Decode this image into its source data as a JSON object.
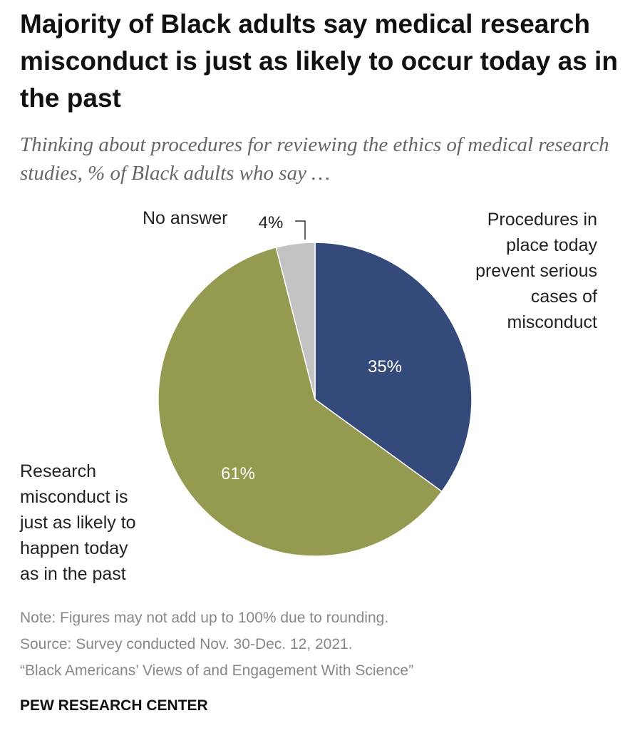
{
  "title": "Majority of Black adults say medical research misconduct is just as likely to occur today as in the past",
  "subtitle": "Thinking about procedures for reviewing the ethics of medical research studies, % of Black adults who say …",
  "chart_data": {
    "type": "pie",
    "title": "Majority of Black adults say medical research misconduct is just as likely to occur today as in the past",
    "slices": [
      {
        "name": "Procedures in place today prevent serious cases of misconduct",
        "value": 35,
        "label": "35%",
        "color": "#344a7a"
      },
      {
        "name": "Research misconduct is just as likely to happen today as in the past",
        "value": 61,
        "label": "61%",
        "color": "#949a4f"
      },
      {
        "name": "No answer",
        "value": 4,
        "label": "4%",
        "color": "#c3c3c3"
      }
    ]
  },
  "labels": {
    "procedures": [
      "Procedures in",
      "place today",
      "prevent serious",
      "cases of",
      "misconduct"
    ],
    "misconduct": [
      "Research",
      "misconduct is",
      "just as likely to",
      "happen today",
      "as in the past"
    ],
    "no_answer": "No answer"
  },
  "footer": {
    "note": "Note: Figures may not add up to 100% due to rounding.",
    "source": "Source: Survey conducted Nov. 30-Dec. 12, 2021.",
    "report": "“Black Americans’ Views of and Engagement With Science”",
    "brand": "PEW RESEARCH CENTER"
  }
}
